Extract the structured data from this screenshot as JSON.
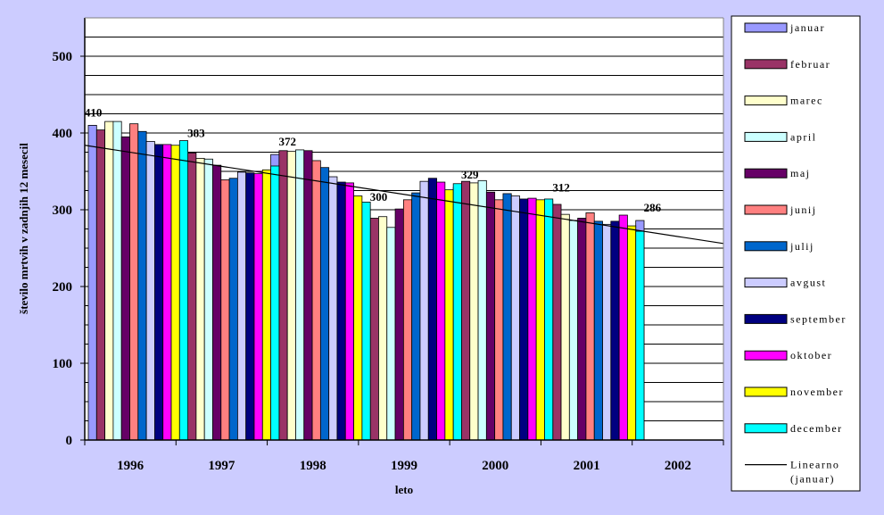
{
  "chart_data": {
    "type": "bar",
    "title": "",
    "xlabel": "leto",
    "ylabel": "število mrtvih v zadnjih 12 mesecil",
    "ylim": [
      0,
      550
    ],
    "yticks": [
      0,
      100,
      200,
      300,
      400,
      500
    ],
    "grid": true,
    "legend_position": "right",
    "categories": [
      "1996",
      "1997",
      "1998",
      "1999",
      "2000",
      "2001",
      "2002"
    ],
    "series": [
      {
        "name": "januar",
        "color": "#9999FF",
        "values": [
          410,
          383,
          372,
          300,
          329,
          312,
          286
        ]
      },
      {
        "name": "februar",
        "color": "#993366",
        "values": [
          404,
          374,
          377,
          289,
          337,
          307,
          null
        ]
      },
      {
        "name": "marec",
        "color": "#FFFFCC",
        "values": [
          415,
          367,
          376,
          291,
          335,
          294,
          null
        ]
      },
      {
        "name": "april",
        "color": "#CCFFFF",
        "values": [
          415,
          366,
          378,
          277,
          338,
          286,
          null
        ]
      },
      {
        "name": "maj",
        "color": "#660066",
        "values": [
          395,
          358,
          377,
          301,
          323,
          289,
          null
        ]
      },
      {
        "name": "junij",
        "color": "#FF8080",
        "values": [
          412,
          339,
          364,
          313,
          313,
          296,
          null
        ]
      },
      {
        "name": "julij",
        "color": "#0066CC",
        "values": [
          402,
          341,
          355,
          322,
          321,
          285,
          null
        ]
      },
      {
        "name": "avgust",
        "color": "#CCCCFF",
        "values": [
          389,
          349,
          343,
          337,
          318,
          281,
          null
        ]
      },
      {
        "name": "september",
        "color": "#000080",
        "values": [
          385,
          348,
          336,
          341,
          314,
          285,
          null
        ]
      },
      {
        "name": "oktober",
        "color": "#FF00FF",
        "values": [
          385,
          347,
          335,
          336,
          315,
          293,
          null
        ]
      },
      {
        "name": "november",
        "color": "#FFFF00",
        "values": [
          384,
          352,
          318,
          326,
          313,
          279,
          null
        ]
      },
      {
        "name": "december",
        "color": "#00FFFF",
        "values": [
          390,
          357,
          310,
          334,
          314,
          272,
          null
        ]
      }
    ],
    "data_labels": [
      {
        "category": "1996",
        "text": "410"
      },
      {
        "category": "1997",
        "text": "383"
      },
      {
        "category": "1998",
        "text": "372"
      },
      {
        "category": "1999",
        "text": "300"
      },
      {
        "category": "2000",
        "text": "329"
      },
      {
        "category": "2001",
        "text": "312"
      },
      {
        "category": "2002",
        "text": "286"
      }
    ],
    "trendline": {
      "name": "Linearno (januar)",
      "color": "#000000",
      "start_value": 384,
      "end_value": 256
    }
  }
}
